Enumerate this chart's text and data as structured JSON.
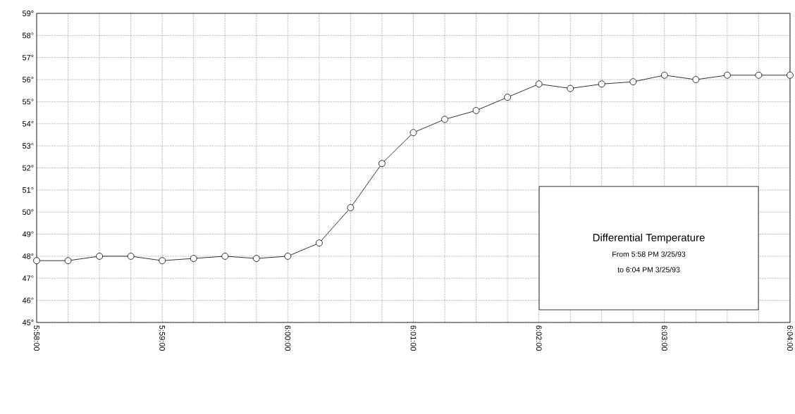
{
  "chart_data": {
    "type": "line",
    "title": "Differential Temperature",
    "annotations": [
      "From 5:58 PM 3/25/93",
      "to 6:04 PM 3/25/93"
    ],
    "categories": [
      "5:58:00",
      null,
      null,
      null,
      "5:59:00",
      null,
      null,
      null,
      "6:00:00",
      null,
      null,
      null,
      "6:01:00",
      null,
      null,
      null,
      "6:02:00",
      null,
      null,
      null,
      "6:03:00",
      null,
      null,
      null,
      "6:04:00"
    ],
    "series": [
      {
        "color": "#000000",
        "values": [
          47.8,
          47.8,
          48.0,
          48.0,
          47.8,
          47.9,
          48.0,
          47.9,
          48.0,
          48.6,
          50.2,
          52.2,
          53.6,
          54.2,
          54.6,
          55.2,
          55.8,
          55.6,
          55.8,
          55.9,
          56.2,
          56.0,
          56.2,
          56.2,
          56.2
        ]
      }
    ],
    "ylim": [
      45,
      59
    ],
    "yticks": [
      {
        "value": 45,
        "label": "45°"
      },
      {
        "value": 46,
        "label": "46°"
      },
      {
        "value": 47,
        "label": "47°"
      },
      {
        "value": 48,
        "label": "48°"
      },
      {
        "value": 49,
        "label": "49°"
      },
      {
        "value": 50,
        "label": "50°"
      },
      {
        "value": 51,
        "label": "51°"
      },
      {
        "value": 52,
        "label": "52°"
      },
      {
        "value": 53,
        "label": "53°"
      },
      {
        "value": 54,
        "label": "54°"
      },
      {
        "value": 55,
        "label": "55°"
      },
      {
        "value": 56,
        "label": "56°"
      },
      {
        "value": 57,
        "label": "57°"
      },
      {
        "value": 58,
        "label": "58°"
      },
      {
        "value": 59,
        "label": "59°"
      }
    ],
    "grid": true,
    "marker": "circle",
    "line_style": "solid"
  }
}
